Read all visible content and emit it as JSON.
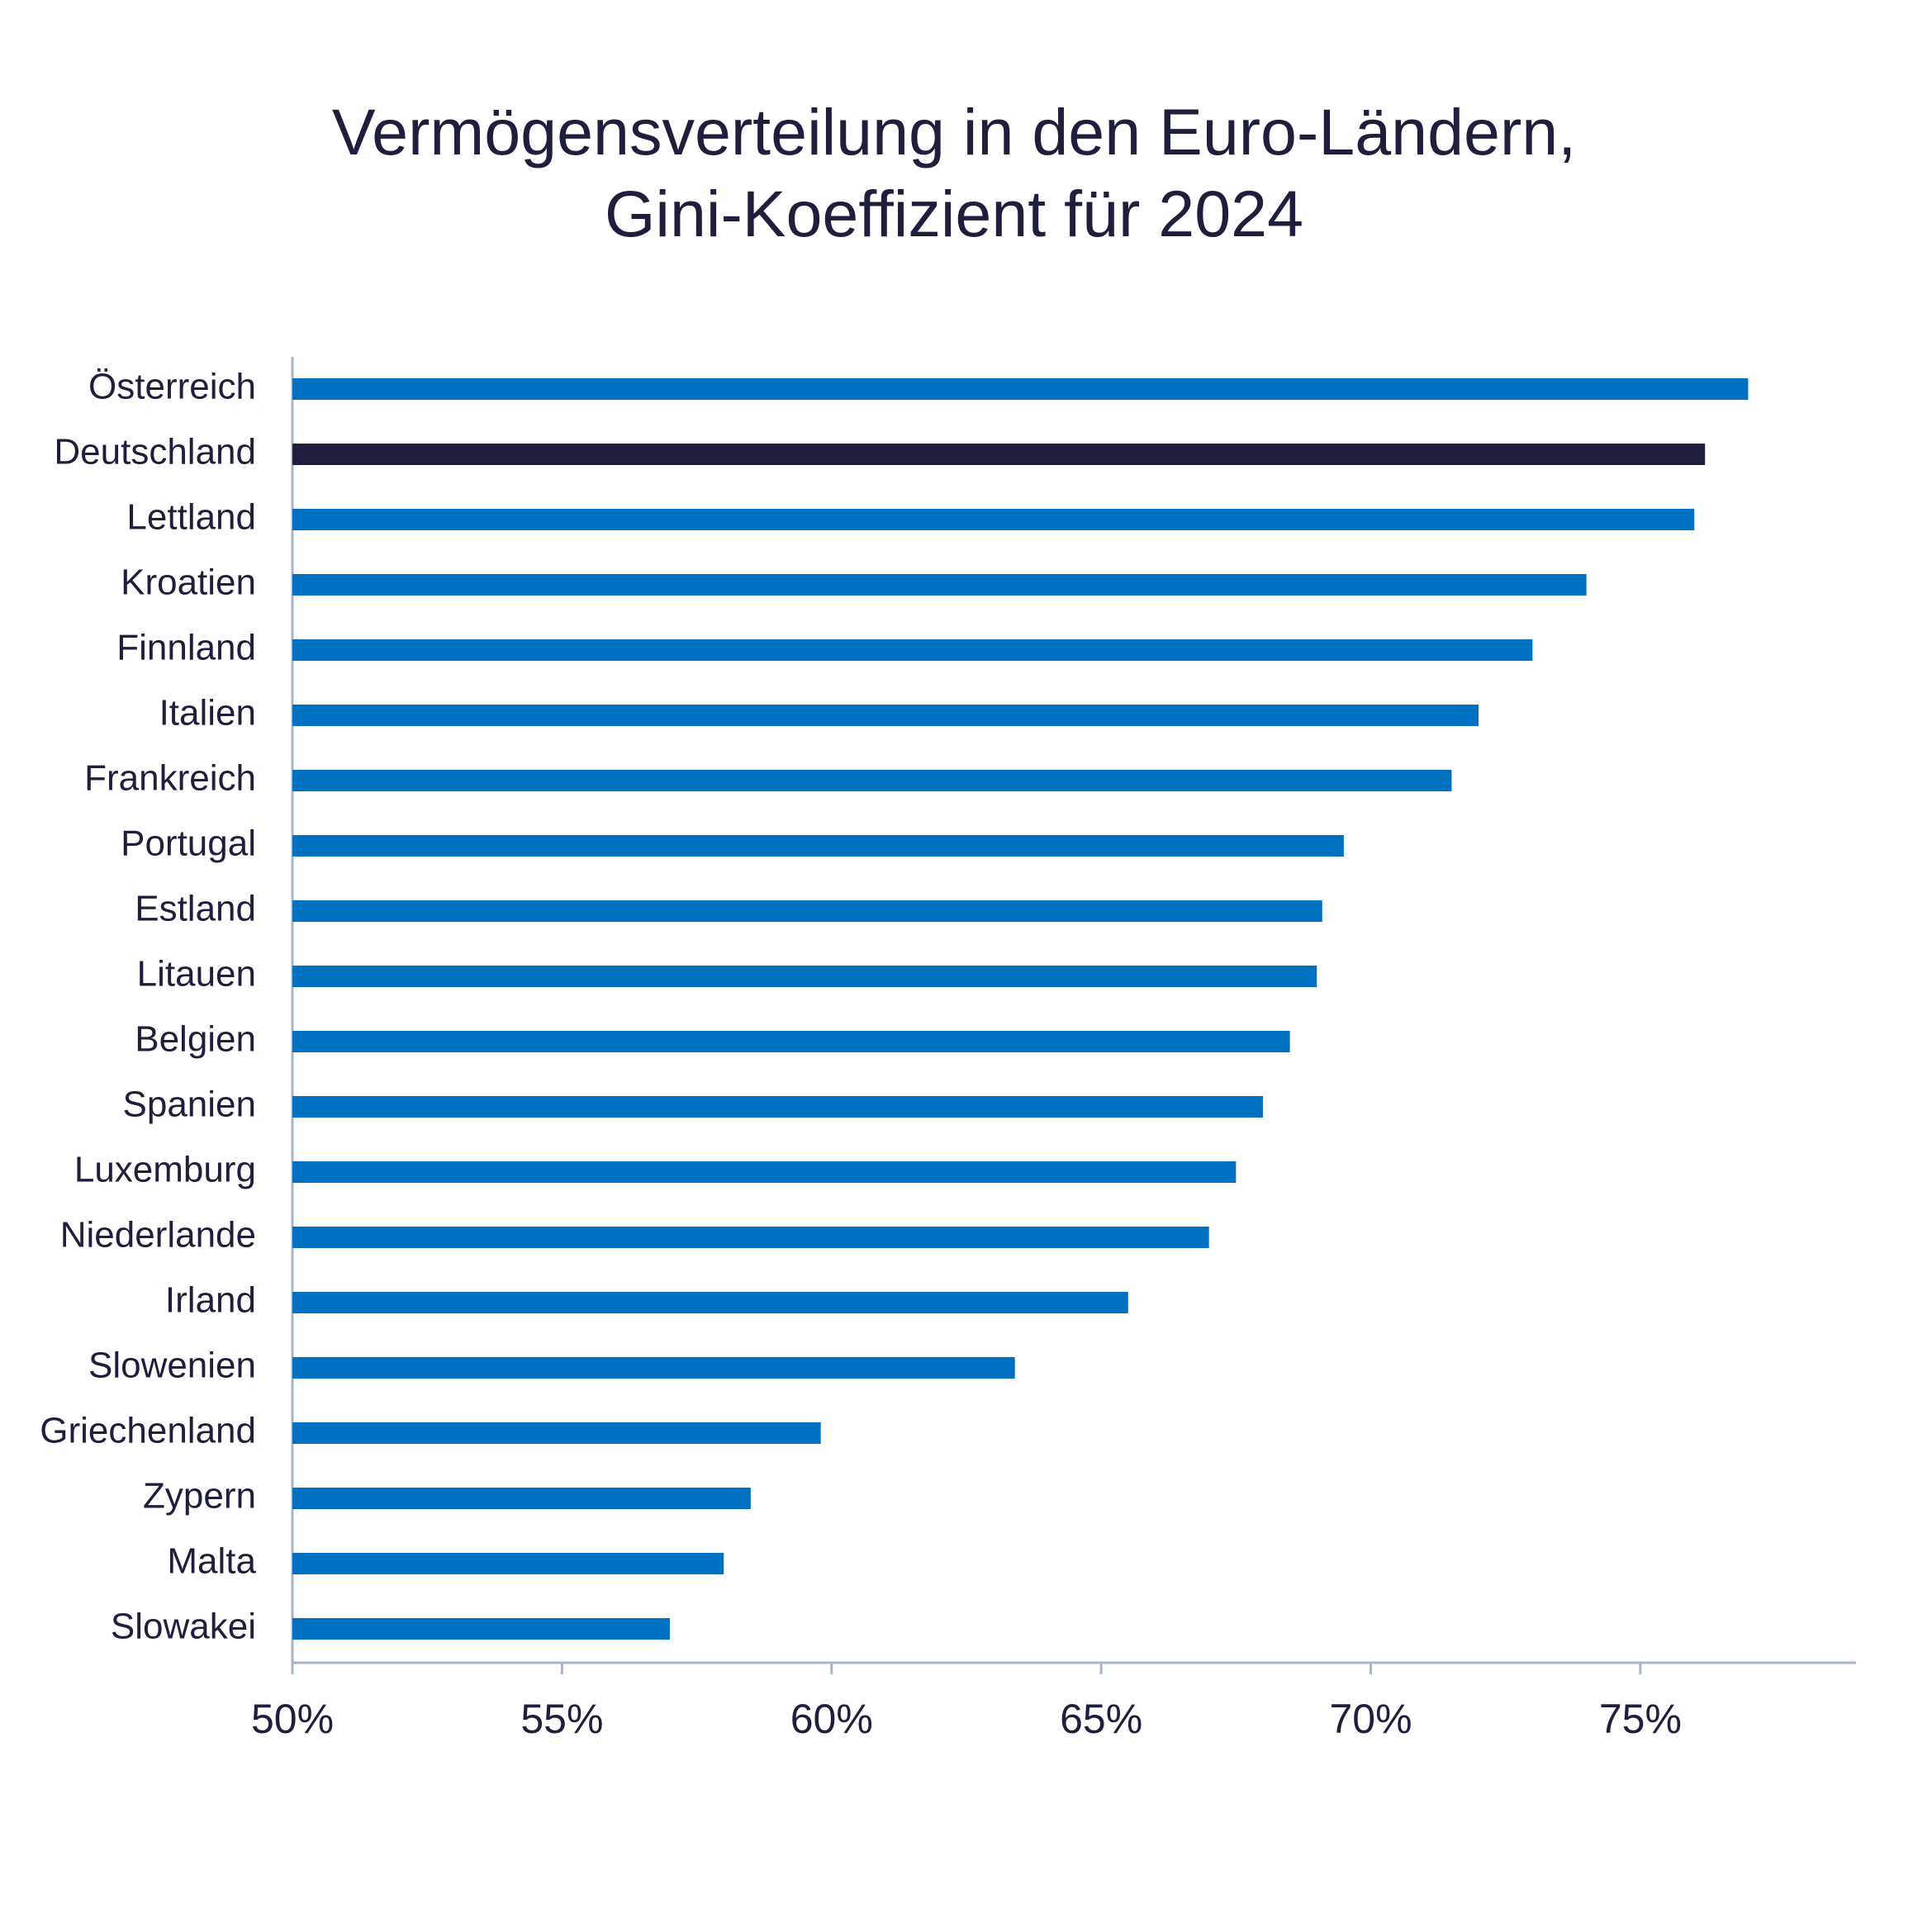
{
  "chart_data": {
    "type": "barh",
    "title": [
      "Vermögensverteilung in den Euro-Ländern,",
      "Gini-Koeffizient für 2024"
    ],
    "categories": [
      "Österreich",
      "Deutschland",
      "Lettland",
      "Kroatien",
      "Finnland",
      "Italien",
      "Frankreich",
      "Portugal",
      "Estland",
      "Litauen",
      "Belgien",
      "Spanien",
      "Luxemburg",
      "Niederlande",
      "Irland",
      "Slowenien",
      "Griechenland",
      "Zypern",
      "Malta",
      "Slowakei"
    ],
    "values": [
      77.0,
      76.2,
      76.0,
      74.0,
      73.0,
      72.0,
      71.5,
      69.5,
      69.1,
      69.0,
      68.5,
      68.0,
      67.5,
      67.0,
      65.5,
      63.4,
      59.8,
      58.5,
      58.0,
      57.0
    ],
    "colors": [
      "#0070c0",
      "#1f1f3d",
      "#0070c0",
      "#0070c0",
      "#0070c0",
      "#0070c0",
      "#0070c0",
      "#0070c0",
      "#0070c0",
      "#0070c0",
      "#0070c0",
      "#0070c0",
      "#0070c0",
      "#0070c0",
      "#0070c0",
      "#0070c0",
      "#0070c0",
      "#0070c0",
      "#0070c0",
      "#0070c0"
    ],
    "xlim": [
      50,
      79
    ],
    "xticks": [
      {
        "value": 50,
        "label": "50%"
      },
      {
        "value": 55,
        "label": "55%"
      },
      {
        "value": 60,
        "label": "60%"
      },
      {
        "value": 65,
        "label": "65%"
      },
      {
        "value": 70,
        "label": "70%"
      },
      {
        "value": 75,
        "label": "75%"
      }
    ],
    "grid": false
  }
}
